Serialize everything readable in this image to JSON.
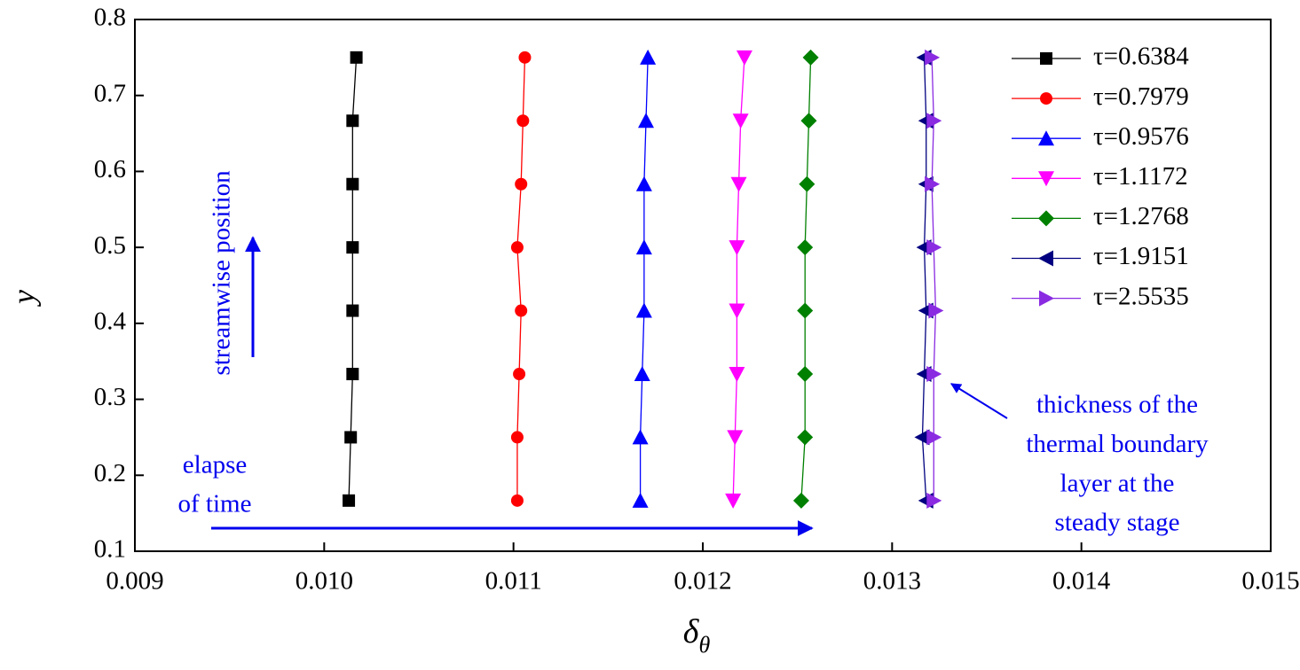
{
  "chart_data": {
    "type": "line",
    "x_label": "δ",
    "x_label_subscript": "θ",
    "y_label": "y",
    "xlim": [
      0.009,
      0.015
    ],
    "xticks": [
      0.009,
      {
        "value": 0.01,
        "label": "0.010"
      },
      0.011,
      0.012,
      0.013,
      0.014,
      0.015
    ],
    "ylim": [
      0.1,
      0.8
    ],
    "yticks": [
      0.1,
      0.2,
      0.3,
      0.4,
      0.5,
      0.6,
      0.7,
      0.8
    ],
    "legend": "upper right",
    "y": [
      0.1667,
      0.25,
      0.3333,
      0.4167,
      0.5,
      0.5833,
      0.6667,
      0.75
    ],
    "series": [
      {
        "name": "τ=0.6384",
        "color": "#000000",
        "marker": "square",
        "values": [
          0.01013,
          0.01014,
          0.01015,
          0.01015,
          0.01015,
          0.01015,
          0.01015,
          0.01017
        ]
      },
      {
        "name": "τ=0.7979",
        "color": "#ff0000",
        "marker": "circle",
        "values": [
          0.01102,
          0.01102,
          0.01103,
          0.01104,
          0.01102,
          0.01104,
          0.01105,
          0.01106
        ]
      },
      {
        "name": "τ=0.9576",
        "color": "#0000ff",
        "marker": "triangle-up",
        "values": [
          0.01167,
          0.01167,
          0.01168,
          0.01169,
          0.01169,
          0.01169,
          0.0117,
          0.01171
        ]
      },
      {
        "name": "τ=1.1172",
        "color": "#ff00ff",
        "marker": "triangle-down",
        "values": [
          0.01216,
          0.01217,
          0.01218,
          0.01218,
          0.01218,
          0.01219,
          0.0122,
          0.01222
        ]
      },
      {
        "name": "τ=1.2768",
        "color": "#008000",
        "marker": "diamond",
        "values": [
          0.01252,
          0.01254,
          0.01254,
          0.01254,
          0.01254,
          0.01255,
          0.01256,
          0.01257
        ]
      },
      {
        "name": "τ=1.9151",
        "color": "#000080",
        "marker": "triangle-left",
        "values": [
          0.01318,
          0.01316,
          0.01317,
          0.01318,
          0.01317,
          0.01318,
          0.01318,
          0.01317
        ]
      },
      {
        "name": "τ=2.5535",
        "color": "#8a2be2",
        "marker": "triangle-right",
        "values": [
          0.01322,
          0.01322,
          0.01322,
          0.01323,
          0.01322,
          0.01321,
          0.01322,
          0.01321
        ]
      }
    ],
    "annotations": [
      {
        "lines": [
          "streamwise position"
        ]
      },
      {
        "lines": [
          "elapse",
          "of time"
        ]
      },
      {
        "lines": [
          "thickness of the",
          "thermal boundary",
          "layer at the",
          "steady stage"
        ]
      }
    ]
  }
}
